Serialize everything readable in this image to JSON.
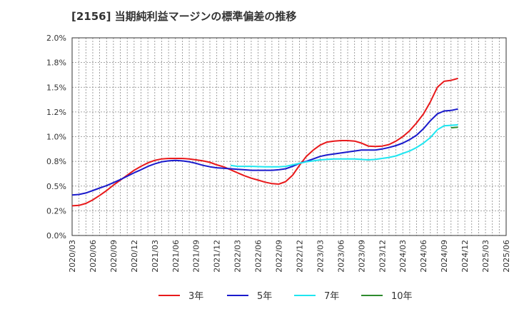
{
  "chart_data": {
    "type": "line",
    "title": "[2156]  当期純利益マージンの標準偏差の推移",
    "xlabel": "",
    "ylabel": "",
    "y_ticks": [
      "0.0%",
      "0.2%",
      "0.5%",
      "0.8%",
      "1.0%",
      "1.2%",
      "1.5%",
      "1.8%",
      "2.0%"
    ],
    "ylim": [
      0,
      2.0
    ],
    "x_ticks": [
      "2020/03",
      "2020/06",
      "2020/09",
      "2020/12",
      "2021/03",
      "2021/06",
      "2021/09",
      "2021/12",
      "2022/03",
      "2022/06",
      "2022/09",
      "2022/12",
      "2023/03",
      "2023/06",
      "2023/09",
      "2023/12",
      "2024/03",
      "2024/06",
      "2024/09",
      "2024/12",
      "2025/03",
      "2025/06"
    ],
    "grid": true,
    "legend_position": "bottom",
    "series": [
      {
        "name": "3年",
        "color": "#e8191b",
        "values": [
          [
            0,
            0.3
          ],
          [
            0.33,
            0.305
          ],
          [
            0.67,
            0.325
          ],
          [
            1,
            0.36
          ],
          [
            1.33,
            0.405
          ],
          [
            1.67,
            0.455
          ],
          [
            2,
            0.51
          ],
          [
            2.33,
            0.56
          ],
          [
            2.67,
            0.61
          ],
          [
            3,
            0.66
          ],
          [
            3.33,
            0.7
          ],
          [
            3.67,
            0.735
          ],
          [
            4,
            0.76
          ],
          [
            4.33,
            0.775
          ],
          [
            4.67,
            0.78
          ],
          [
            5,
            0.78
          ],
          [
            5.33,
            0.78
          ],
          [
            5.67,
            0.775
          ],
          [
            6,
            0.765
          ],
          [
            6.33,
            0.755
          ],
          [
            6.67,
            0.74
          ],
          [
            7,
            0.715
          ],
          [
            7.33,
            0.695
          ],
          [
            7.67,
            0.665
          ],
          [
            8,
            0.635
          ],
          [
            8.33,
            0.605
          ],
          [
            8.67,
            0.58
          ],
          [
            9,
            0.56
          ],
          [
            9.33,
            0.54
          ],
          [
            9.67,
            0.525
          ],
          [
            10,
            0.52
          ],
          [
            10.33,
            0.545
          ],
          [
            10.67,
            0.61
          ],
          [
            11,
            0.71
          ],
          [
            11.33,
            0.8
          ],
          [
            11.67,
            0.865
          ],
          [
            12,
            0.915
          ],
          [
            12.33,
            0.945
          ],
          [
            12.67,
            0.955
          ],
          [
            13,
            0.96
          ],
          [
            13.33,
            0.96
          ],
          [
            13.67,
            0.955
          ],
          [
            14,
            0.935
          ],
          [
            14.33,
            0.905
          ],
          [
            14.67,
            0.9
          ],
          [
            15,
            0.905
          ],
          [
            15.33,
            0.92
          ],
          [
            15.67,
            0.955
          ],
          [
            16,
            1.0
          ],
          [
            16.33,
            1.06
          ],
          [
            16.67,
            1.14
          ],
          [
            17,
            1.23
          ],
          [
            17.33,
            1.35
          ],
          [
            17.67,
            1.5
          ],
          [
            18,
            1.56
          ],
          [
            18.33,
            1.57
          ],
          [
            18.67,
            1.59
          ]
        ]
      },
      {
        "name": "5年",
        "color": "#1a1acc",
        "values": [
          [
            0,
            0.41
          ],
          [
            0.33,
            0.415
          ],
          [
            0.67,
            0.43
          ],
          [
            1,
            0.455
          ],
          [
            1.33,
            0.48
          ],
          [
            1.67,
            0.505
          ],
          [
            2,
            0.535
          ],
          [
            2.33,
            0.565
          ],
          [
            2.67,
            0.6
          ],
          [
            3,
            0.635
          ],
          [
            3.33,
            0.665
          ],
          [
            3.67,
            0.7
          ],
          [
            4,
            0.725
          ],
          [
            4.33,
            0.745
          ],
          [
            4.67,
            0.755
          ],
          [
            5,
            0.76
          ],
          [
            5.33,
            0.755
          ],
          [
            5.67,
            0.745
          ],
          [
            6,
            0.73
          ],
          [
            6.33,
            0.71
          ],
          [
            6.67,
            0.695
          ],
          [
            7,
            0.685
          ],
          [
            7.33,
            0.68
          ],
          [
            7.67,
            0.675
          ],
          [
            8,
            0.67
          ],
          [
            8.33,
            0.665
          ],
          [
            8.67,
            0.66
          ],
          [
            9,
            0.66
          ],
          [
            9.33,
            0.66
          ],
          [
            9.67,
            0.66
          ],
          [
            10,
            0.665
          ],
          [
            10.33,
            0.675
          ],
          [
            10.67,
            0.7
          ],
          [
            11,
            0.73
          ],
          [
            11.33,
            0.75
          ],
          [
            11.67,
            0.775
          ],
          [
            12,
            0.8
          ],
          [
            12.33,
            0.815
          ],
          [
            12.67,
            0.825
          ],
          [
            13,
            0.835
          ],
          [
            13.33,
            0.845
          ],
          [
            13.67,
            0.855
          ],
          [
            14,
            0.865
          ],
          [
            14.33,
            0.865
          ],
          [
            14.67,
            0.865
          ],
          [
            15,
            0.875
          ],
          [
            15.33,
            0.89
          ],
          [
            15.67,
            0.91
          ],
          [
            16,
            0.935
          ],
          [
            16.33,
            0.97
          ],
          [
            16.67,
            1.015
          ],
          [
            17,
            1.08
          ],
          [
            17.33,
            1.16
          ],
          [
            17.67,
            1.23
          ],
          [
            18,
            1.26
          ],
          [
            18.33,
            1.265
          ],
          [
            18.67,
            1.28
          ]
        ]
      },
      {
        "name": "7年",
        "color": "#1fe6f0",
        "values": [
          [
            7.67,
            0.71
          ],
          [
            8,
            0.7
          ],
          [
            8.67,
            0.7
          ],
          [
            9.33,
            0.695
          ],
          [
            10,
            0.695
          ],
          [
            10.33,
            0.7
          ],
          [
            10.67,
            0.715
          ],
          [
            11,
            0.73
          ],
          [
            11.33,
            0.745
          ],
          [
            11.67,
            0.755
          ],
          [
            12,
            0.765
          ],
          [
            12.33,
            0.77
          ],
          [
            12.67,
            0.775
          ],
          [
            13,
            0.775
          ],
          [
            13.33,
            0.775
          ],
          [
            13.67,
            0.775
          ],
          [
            14,
            0.77
          ],
          [
            14.33,
            0.765
          ],
          [
            14.67,
            0.77
          ],
          [
            15,
            0.78
          ],
          [
            15.33,
            0.79
          ],
          [
            15.67,
            0.805
          ],
          [
            16,
            0.83
          ],
          [
            16.33,
            0.855
          ],
          [
            16.67,
            0.89
          ],
          [
            17,
            0.935
          ],
          [
            17.33,
            0.99
          ],
          [
            17.67,
            1.07
          ],
          [
            18,
            1.11
          ],
          [
            18.33,
            1.115
          ],
          [
            18.67,
            1.12
          ]
        ]
      },
      {
        "name": "10年",
        "color": "#2e8b2e",
        "values": [
          [
            18.33,
            1.09
          ],
          [
            18.67,
            1.095
          ]
        ]
      }
    ]
  }
}
